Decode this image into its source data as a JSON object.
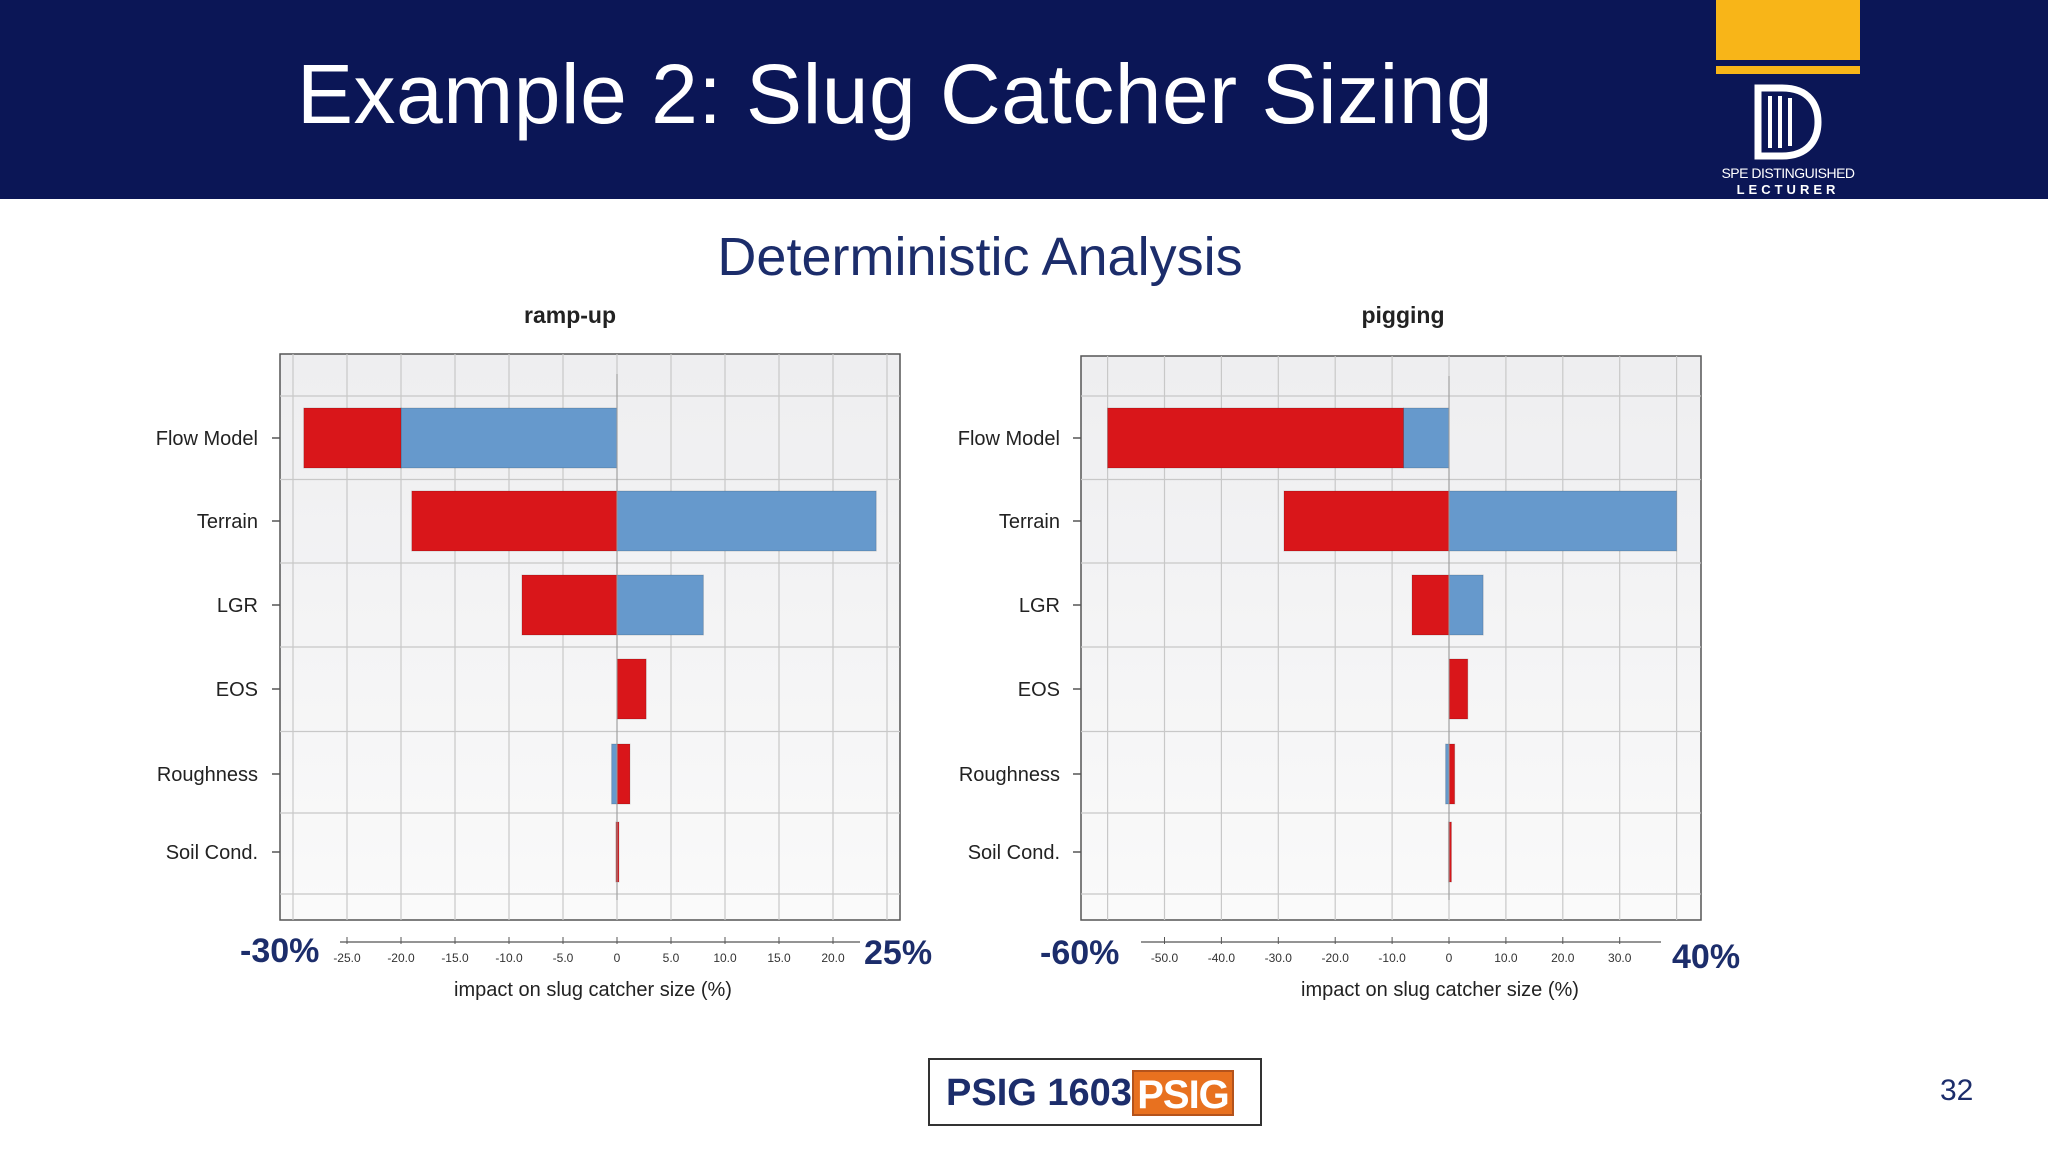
{
  "slide": {
    "title": "Example 2: Slug Catcher Sizing",
    "subtitle": "Deterministic Analysis",
    "page_number": "32",
    "badge_text": "PSIG 1603",
    "badge_logo": "PSIG",
    "logo": {
      "line1": "SPE DISTINGUISHED",
      "line2": "LECTURER",
      "letter": "D"
    },
    "colors": {
      "header": "#0b1656",
      "accent": "#f8b518",
      "low_bar": "#d9161a",
      "high_bar": "#6699cc",
      "text": "#1c2d6b"
    }
  },
  "chart_data": [
    {
      "type": "bar",
      "orientation": "horizontal",
      "title": "ramp-up",
      "xlabel": "impact on slug catcher size (%)",
      "ylabel": "",
      "xlim": [
        -30,
        25
      ],
      "range_labels": [
        "-30%",
        "25%"
      ],
      "x_ticks": [
        -25,
        -20,
        -15,
        -10,
        -5,
        0,
        5,
        10,
        15,
        20
      ],
      "x_tick_labels": [
        "-25.0",
        "-20.0",
        "-15.0",
        "-10.0",
        "-5.0",
        "0",
        "5.0",
        "10.0",
        "15.0",
        "20.0"
      ],
      "categories": [
        "Flow Model",
        "Terrain",
        "LGR",
        "EOS",
        "Roughness",
        "Soil Cond."
      ],
      "bars": [
        {
          "red": [
            -29.0,
            -20.0
          ],
          "blue": [
            -20.0,
            0
          ]
        },
        {
          "red": [
            -19.0,
            0
          ],
          "blue": [
            0,
            24.0
          ]
        },
        {
          "red": [
            -8.8,
            0
          ],
          "blue": [
            0,
            8.0
          ]
        },
        {
          "red": [
            0,
            2.7
          ],
          "blue": [
            0,
            0
          ]
        },
        {
          "red": [
            0,
            1.2
          ],
          "blue": [
            -0.5,
            0
          ]
        },
        {
          "red": [
            -0.1,
            0.1
          ],
          "blue": [
            0,
            0
          ]
        }
      ],
      "grid": true
    },
    {
      "type": "bar",
      "orientation": "horizontal",
      "title": "pigging",
      "xlabel": "impact on slug catcher size (%)",
      "ylabel": "",
      "xlim": [
        -60,
        40
      ],
      "range_labels": [
        "-60%",
        "40%"
      ],
      "x_ticks": [
        -50,
        -40,
        -30,
        -20,
        -10,
        0,
        10,
        20,
        30
      ],
      "x_tick_labels": [
        "-50.0",
        "-40.0",
        "-30.0",
        "-20.0",
        "-10.0",
        "0",
        "10.0",
        "20.0",
        "30.0"
      ],
      "categories": [
        "Flow Model",
        "Terrain",
        "LGR",
        "EOS",
        "Roughness",
        "Soil Cond."
      ],
      "bars": [
        {
          "red": [
            -60.0,
            -8.0
          ],
          "blue": [
            -8.0,
            0
          ]
        },
        {
          "red": [
            -29.0,
            0
          ],
          "blue": [
            0,
            40.0
          ]
        },
        {
          "red": [
            -6.5,
            0
          ],
          "blue": [
            0,
            6.0
          ]
        },
        {
          "red": [
            0,
            3.3
          ],
          "blue": [
            0,
            0
          ]
        },
        {
          "red": [
            0,
            1.0
          ],
          "blue": [
            -0.6,
            0
          ]
        },
        {
          "red": [
            -0.1,
            0.2
          ],
          "blue": [
            0,
            0
          ]
        }
      ],
      "grid": true
    }
  ]
}
